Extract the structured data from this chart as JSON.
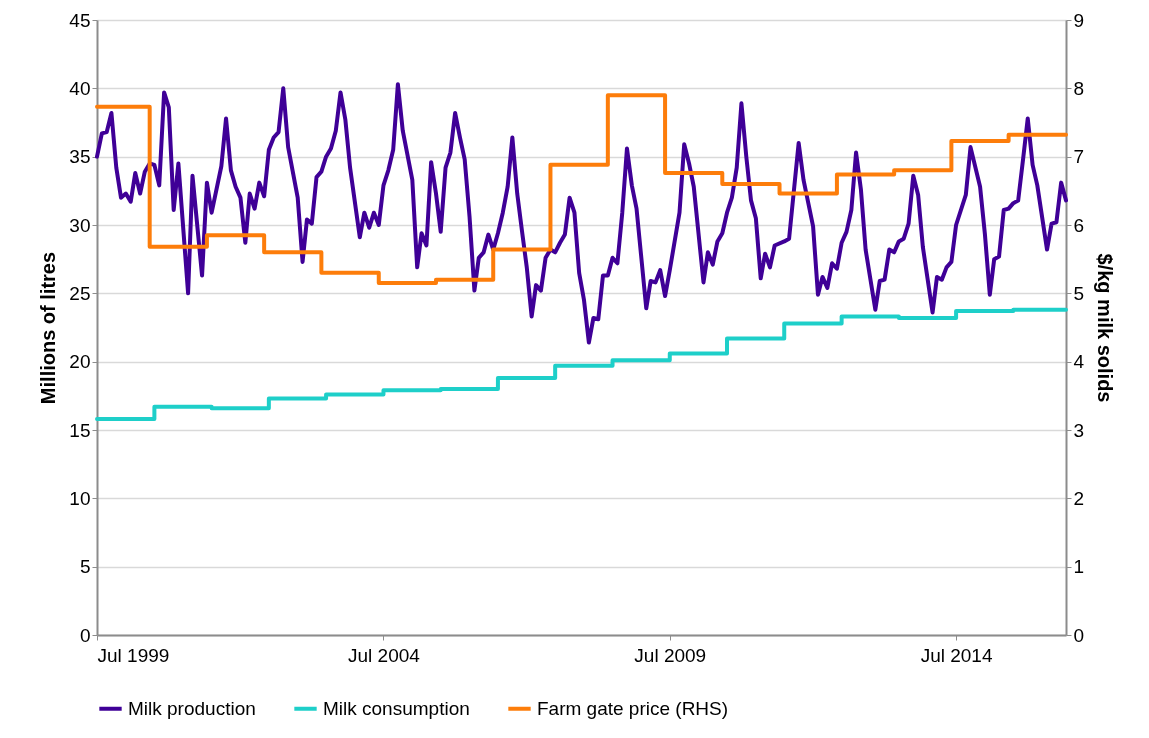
{
  "chart_data": {
    "type": "line",
    "ylabel": "Millions of litres",
    "y2label": "$/kg milk solids",
    "xlim": [
      "1999-07",
      "2016-06"
    ],
    "xticks": [
      {
        "value": "1999-07",
        "label": "Jul 1999"
      },
      {
        "value": "2004-07",
        "label": "Jul 2004"
      },
      {
        "value": "2009-07",
        "label": "Jul 2009"
      },
      {
        "value": "2014-07",
        "label": "Jul 2014"
      }
    ],
    "ylim": [
      0,
      45
    ],
    "yticks": [
      0,
      5,
      10,
      15,
      20,
      25,
      30,
      35,
      40,
      45
    ],
    "y2lim": [
      0,
      9
    ],
    "y2ticks": [
      0,
      1,
      2,
      3,
      4,
      5,
      6,
      7,
      8,
      9
    ],
    "grid": "y",
    "legend": "bottom",
    "series": [
      {
        "name": "Milk production",
        "color": "#3f0097",
        "type": "line",
        "x": [
          "1999-07",
          "1999-08",
          "1999-09",
          "1999-10",
          "1999-11",
          "1999-12",
          "2000-01",
          "2000-02",
          "2000-03",
          "2000-04",
          "2000-05",
          "2000-06",
          "2000-07",
          "2000-08",
          "2000-09",
          "2000-10",
          "2000-11",
          "2000-12",
          "2001-02",
          "2001-03",
          "2001-05",
          "2001-06",
          "2001-07",
          "2001-09",
          "2001-10",
          "2001-11",
          "2001-12",
          "2002-01",
          "2002-02",
          "2002-03",
          "2002-04",
          "2002-05",
          "2002-06",
          "2002-07",
          "2002-08",
          "2002-09",
          "2002-10",
          "2002-11",
          "2003-01",
          "2003-02",
          "2003-03",
          "2003-04",
          "2003-05",
          "2003-06",
          "2003-07",
          "2003-08",
          "2003-09",
          "2003-10",
          "2003-11",
          "2003-12",
          "2004-02",
          "2004-03",
          "2004-04",
          "2004-05",
          "2004-06",
          "2004-07",
          "2004-08",
          "2004-09",
          "2004-10",
          "2004-11",
          "2005-01",
          "2005-02",
          "2005-03",
          "2005-04",
          "2005-05",
          "2005-06",
          "2005-07",
          "2005-08",
          "2005-09",
          "2005-10",
          "2005-11",
          "2005-12",
          "2006-01",
          "2006-02",
          "2006-03",
          "2006-04",
          "2006-05",
          "2006-06",
          "2006-07",
          "2006-08",
          "2006-09",
          "2006-10",
          "2006-11",
          "2006-12",
          "2007-01",
          "2007-02",
          "2007-03",
          "2007-04",
          "2007-05",
          "2007-06",
          "2007-07",
          "2007-08",
          "2007-09",
          "2007-10",
          "2007-11",
          "2007-12",
          "2008-01",
          "2008-02",
          "2008-03",
          "2008-04",
          "2008-05",
          "2008-06",
          "2008-07",
          "2008-08",
          "2008-09",
          "2008-10",
          "2008-11",
          "2008-12",
          "2009-02",
          "2009-03",
          "2009-04",
          "2009-05",
          "2009-06",
          "2009-07",
          "2009-09",
          "2009-10",
          "2009-11",
          "2009-12",
          "2010-02",
          "2010-03",
          "2010-04",
          "2010-05",
          "2010-06",
          "2010-07",
          "2010-08",
          "2010-09",
          "2010-10",
          "2010-11",
          "2010-12",
          "2011-01",
          "2011-02",
          "2011-03",
          "2011-04",
          "2011-05",
          "2011-07",
          "2011-08",
          "2011-10",
          "2011-11",
          "2012-01",
          "2012-02",
          "2012-03",
          "2012-04",
          "2012-05",
          "2012-06",
          "2012-07",
          "2012-08",
          "2012-09",
          "2012-10",
          "2012-11",
          "2012-12",
          "2013-02",
          "2013-03",
          "2013-04",
          "2013-05",
          "2013-06",
          "2013-07",
          "2013-08",
          "2013-09",
          "2013-10",
          "2013-11",
          "2013-12",
          "2014-02",
          "2014-03",
          "2014-04",
          "2014-05",
          "2014-06",
          "2014-07",
          "2014-09",
          "2014-10",
          "2014-12",
          "2015-01",
          "2015-02",
          "2015-03",
          "2015-04",
          "2015-05",
          "2015-06",
          "2015-07",
          "2015-08",
          "2015-09",
          "2015-10",
          "2015-11",
          "2015-12",
          "2016-02",
          "2016-03",
          "2016-04",
          "2016-05",
          "2016-06"
        ],
        "values": [
          35.0,
          36.7,
          36.8,
          38.2,
          34.2,
          32.0,
          32.3,
          31.7,
          33.8,
          32.3,
          33.9,
          34.5,
          34.4,
          32.9,
          39.7,
          38.6,
          31.1,
          34.5,
          25.0,
          33.6,
          26.3,
          33.1,
          30.9,
          34.3,
          37.8,
          34.0,
          32.8,
          32.0,
          28.7,
          32.3,
          31.2,
          33.1,
          32.1,
          35.5,
          36.4,
          36.8,
          40.0,
          35.7,
          32.0,
          27.3,
          30.4,
          30.1,
          33.5,
          33.9,
          35.0,
          35.6,
          36.9,
          39.7,
          37.7,
          34.2,
          29.1,
          30.9,
          29.8,
          30.9,
          30.0,
          32.9,
          34.0,
          35.5,
          40.3,
          36.9,
          33.3,
          26.9,
          29.4,
          28.5,
          34.6,
          32.3,
          29.5,
          34.2,
          35.3,
          38.2,
          36.4,
          34.8,
          30.6,
          25.2,
          27.6,
          28.0,
          29.3,
          28.2,
          29.4,
          30.9,
          32.8,
          36.4,
          32.3,
          29.6,
          26.9,
          23.3,
          25.6,
          25.2,
          27.6,
          28.2,
          28.0,
          28.7,
          29.3,
          32.0,
          30.9,
          26.5,
          24.5,
          21.4,
          23.2,
          23.1,
          26.3,
          26.3,
          27.6,
          27.2,
          30.9,
          35.6,
          32.9,
          31.2,
          23.9,
          25.9,
          25.8,
          26.7,
          24.8,
          26.7,
          30.9,
          35.9,
          34.5,
          32.8,
          25.8,
          28.0,
          27.1,
          28.8,
          29.4,
          30.9,
          32.0,
          34.2,
          38.9,
          35.0,
          31.8,
          30.5,
          26.1,
          27.9,
          26.9,
          28.5,
          28.8,
          29.0,
          36.0,
          33.3,
          29.9,
          24.9,
          26.2,
          25.4,
          27.2,
          26.8,
          28.7,
          29.5,
          31.1,
          35.3,
          32.6,
          28.2,
          23.8,
          25.9,
          26.0,
          28.2,
          28.0,
          28.8,
          29.0,
          30.1,
          33.6,
          32.2,
          28.4,
          23.6,
          26.2,
          26.0,
          26.9,
          27.3,
          30.0,
          32.2,
          35.7,
          32.8,
          29.3,
          24.9,
          27.5,
          27.7,
          31.1,
          31.2,
          31.6,
          31.8,
          34.8,
          37.8,
          34.4,
          32.9,
          28.2,
          30.1,
          30.2,
          33.1,
          31.8
        ]
      },
      {
        "name": "Milk consumption",
        "color": "#1ecfc9",
        "type": "step",
        "x": [
          "1999-07",
          "2000-07",
          "2001-07",
          "2002-07",
          "2003-07",
          "2004-07",
          "2005-07",
          "2006-07",
          "2007-07",
          "2008-07",
          "2009-07",
          "2010-07",
          "2011-07",
          "2012-07",
          "2013-07",
          "2014-07",
          "2015-07",
          "2016-06"
        ],
        "values": [
          15.8,
          16.7,
          16.6,
          17.3,
          17.6,
          17.9,
          18.0,
          18.8,
          19.7,
          20.1,
          20.6,
          21.7,
          22.8,
          23.3,
          23.2,
          23.7,
          23.8,
          23.8
        ]
      },
      {
        "name": "Farm gate price (RHS)",
        "color": "#fd7d0a",
        "type": "step",
        "axis": "y2",
        "x": [
          "1999-07",
          "2000-06",
          "2001-06",
          "2002-06",
          "2003-06",
          "2004-06",
          "2005-06",
          "2006-06",
          "2007-06",
          "2008-06",
          "2009-06",
          "2010-06",
          "2011-06",
          "2012-06",
          "2013-06",
          "2014-06",
          "2015-06",
          "2016-06"
        ],
        "values": [
          7.73,
          5.68,
          5.85,
          5.6,
          5.3,
          5.15,
          5.2,
          5.64,
          6.88,
          7.9,
          6.76,
          6.6,
          6.46,
          6.74,
          6.8,
          7.23,
          7.32,
          7.32
        ]
      }
    ]
  }
}
